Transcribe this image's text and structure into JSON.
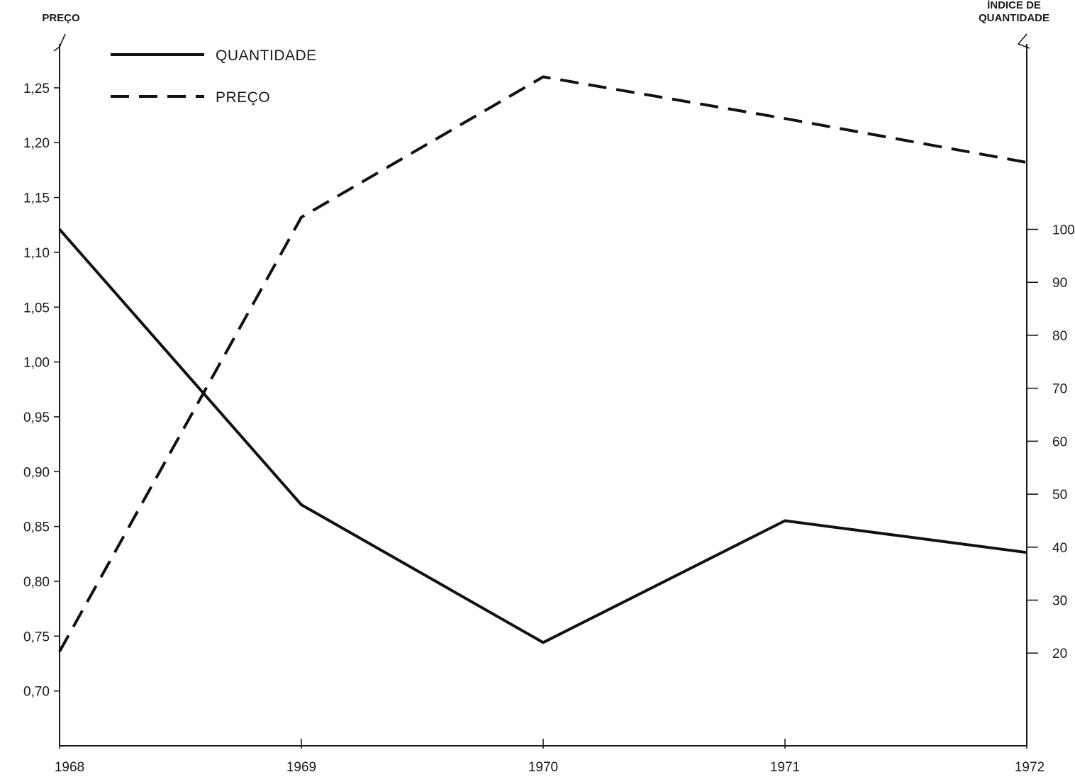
{
  "chart_data": {
    "type": "line",
    "x": [
      "1968",
      "1969",
      "1970",
      "1971",
      "1972"
    ],
    "left_axis": {
      "title": "PREÇO",
      "ylim": [
        0.65,
        1.29
      ],
      "ticks": [
        0.7,
        0.75,
        0.8,
        0.85,
        0.9,
        0.95,
        1.0,
        1.05,
        1.1,
        1.15,
        1.2,
        1.25
      ],
      "tick_labels": [
        "0,70",
        "0,75",
        "0,80",
        "0,85",
        "0,90",
        "0,95",
        "1,00",
        "1,05",
        "1,10",
        "1,15",
        "1,20",
        "1,25"
      ]
    },
    "right_axis": {
      "title_line1": "ÍNDICE DE",
      "title_line2": "QUANTIDADE",
      "ylim": [
        2.5,
        135
      ],
      "ticks": [
        20,
        30,
        40,
        50,
        60,
        70,
        80,
        90,
        100
      ],
      "tick_labels": [
        "20",
        "30",
        "40",
        "50",
        "60",
        "70",
        "80",
        "90",
        "100"
      ]
    },
    "series": [
      {
        "name": "QUANTIDADE",
        "axis": "right",
        "style": "solid",
        "values": [
          100,
          48,
          22,
          45,
          39
        ]
      },
      {
        "name": "PREÇO",
        "axis": "left",
        "style": "dashed",
        "values": [
          0.736,
          1.132,
          1.26,
          1.222,
          1.182
        ]
      }
    ],
    "legend_position": "top-left",
    "grid": false
  }
}
